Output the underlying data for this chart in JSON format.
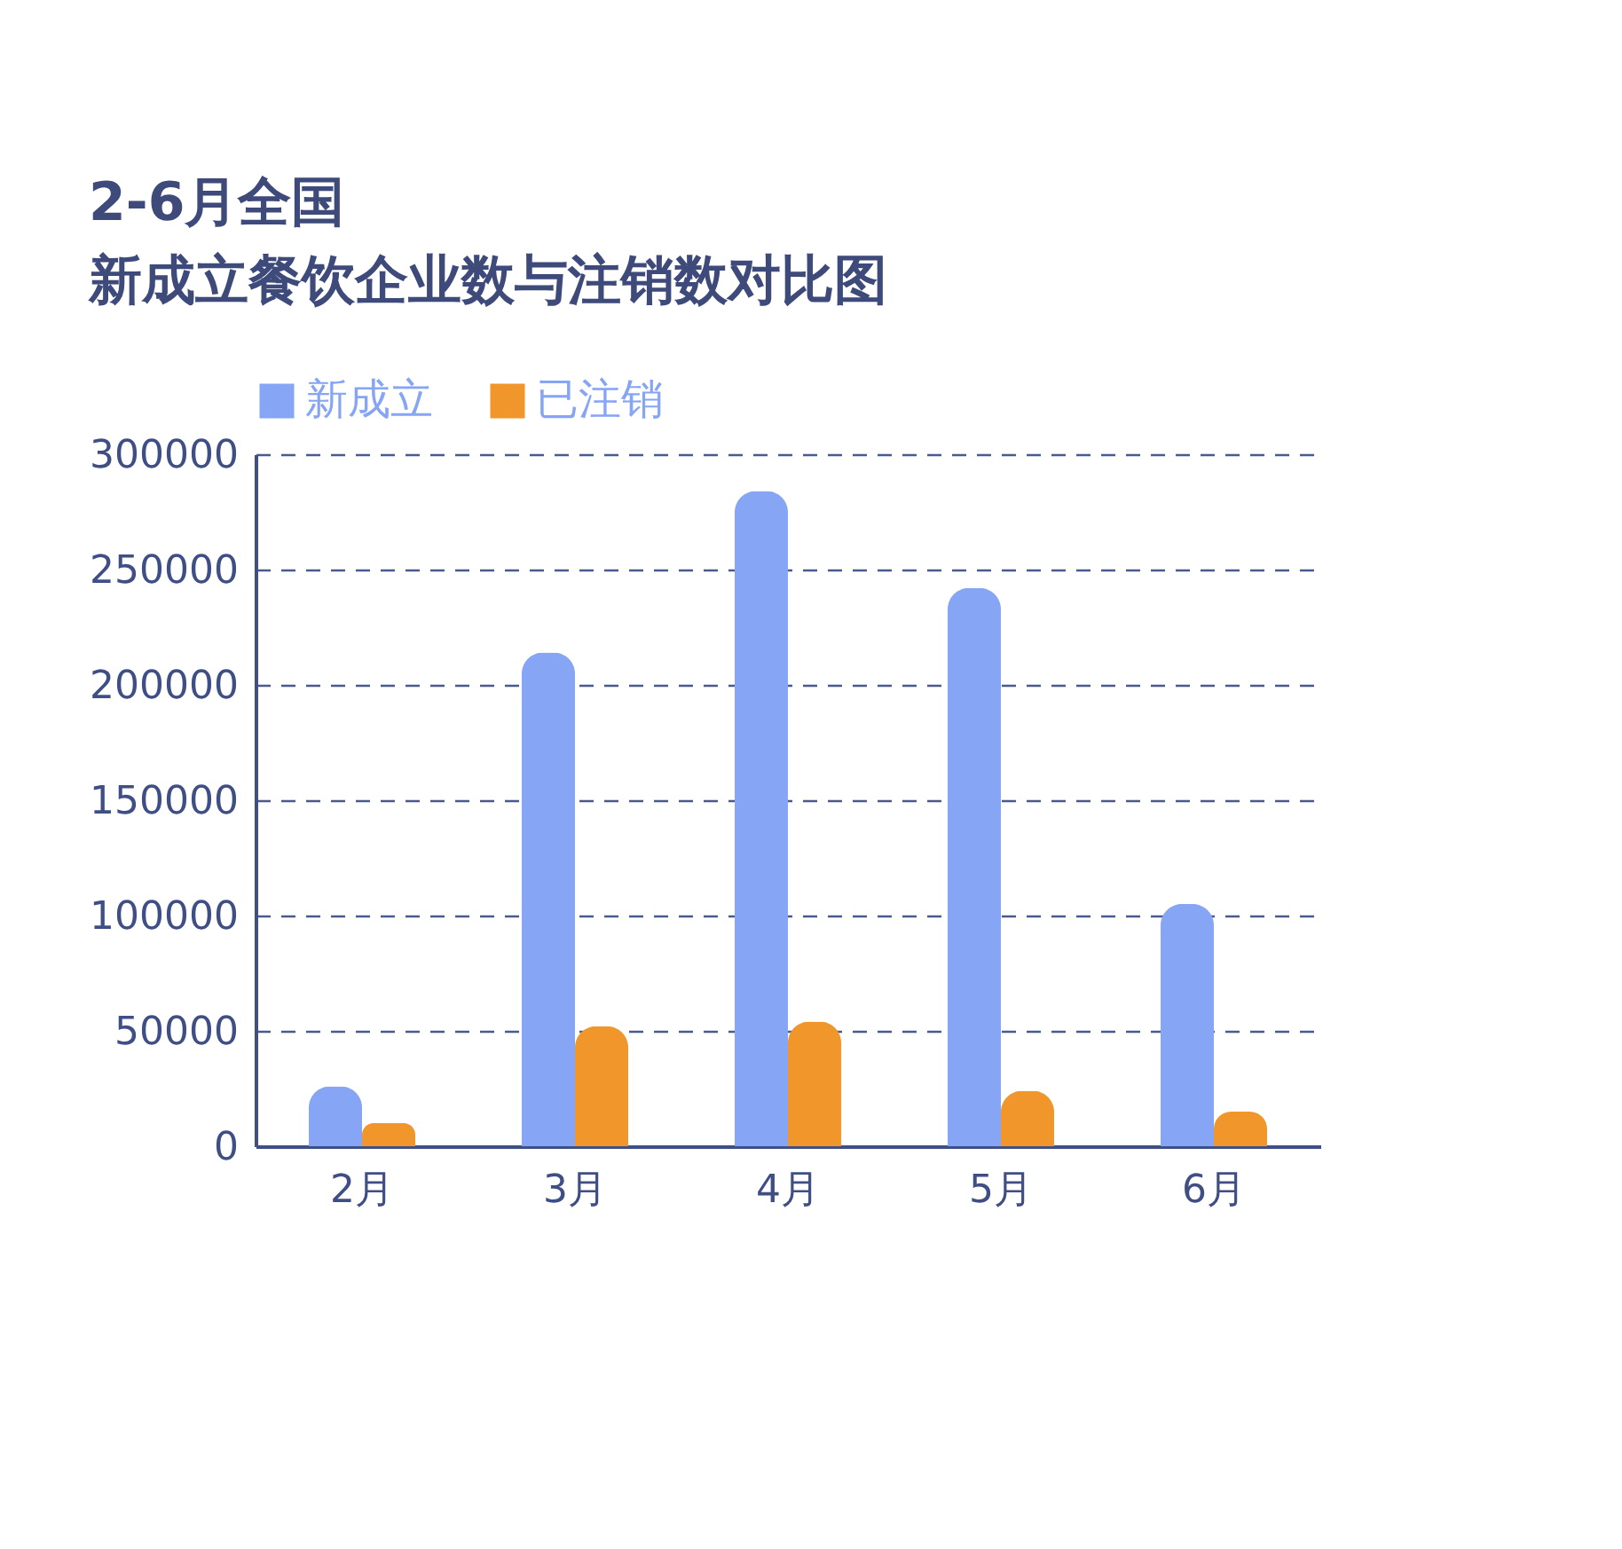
{
  "chart_data": {
    "type": "bar",
    "title": "2-6月全国",
    "subtitle": "新成立餐饮企业数与注销数对比图",
    "categories": [
      "2月",
      "3月",
      "4月",
      "5月",
      "6月"
    ],
    "series": [
      {
        "name": "新成立",
        "color": "#87a5f5",
        "values": [
          26000,
          214000,
          284000,
          242000,
          105000
        ]
      },
      {
        "name": "已注销",
        "color": "#f0962a",
        "values": [
          10000,
          52000,
          54000,
          24000,
          15000
        ]
      }
    ],
    "ylim": [
      0,
      300000
    ],
    "yticks": [
      0,
      50000,
      100000,
      150000,
      200000,
      250000,
      300000
    ],
    "grid": "y",
    "legend": "top left"
  }
}
